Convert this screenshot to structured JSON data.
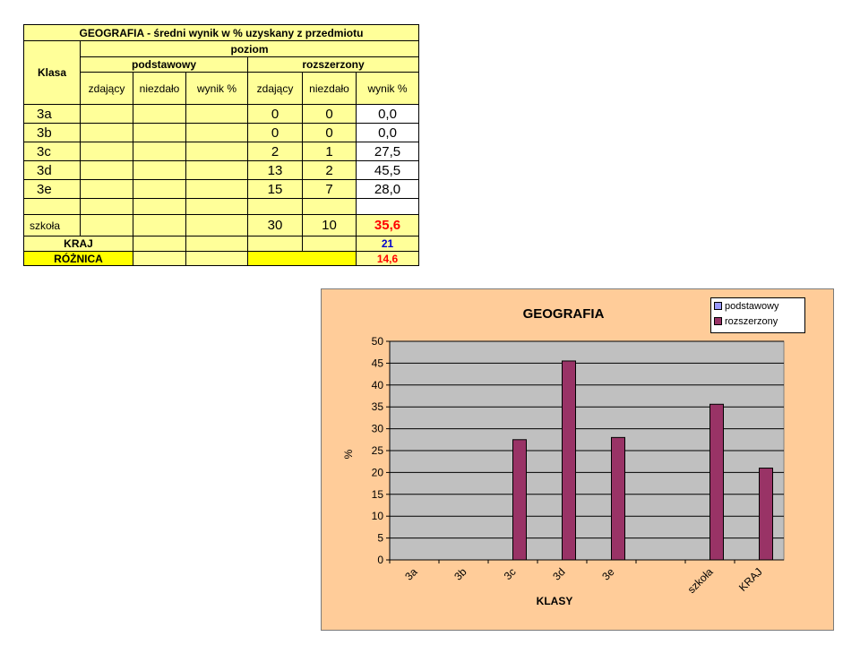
{
  "table": {
    "title": "GEOGRAFIA - średni wynik w % uzyskany z przedmiotu",
    "col_klasa": "Klasa",
    "col_poziom": "poziom",
    "col_podstawowy": "podstawowy",
    "col_rozszerzony": "rozszerzony",
    "sub_headers": [
      "zdający",
      "niezdało",
      "wynik %",
      "zdający",
      "niezdało",
      "wynik %"
    ],
    "rows": [
      {
        "klasa": "3a",
        "zdajacy": "0",
        "niezdalo": "0",
        "wynik": "0,0"
      },
      {
        "klasa": "3b",
        "zdajacy": "0",
        "niezdalo": "0",
        "wynik": "0,0"
      },
      {
        "klasa": "3c",
        "zdajacy": "2",
        "niezdalo": "1",
        "wynik": "27,5"
      },
      {
        "klasa": "3d",
        "zdajacy": "13",
        "niezdalo": "2",
        "wynik": "45,5"
      },
      {
        "klasa": "3e",
        "zdajacy": "15",
        "niezdalo": "7",
        "wynik": "28,0"
      }
    ],
    "szkola": {
      "label": "szkoła",
      "zdajacy": "30",
      "niezdalo": "10",
      "wynik": "35,6"
    },
    "kraj": {
      "label": "KRAJ",
      "wynik": "21"
    },
    "roznica": {
      "label": "RÓŻNICA",
      "wynik": "14,6"
    }
  },
  "chart_data": {
    "type": "bar",
    "title": "GEOGRAFIA",
    "xlabel": "KLASY",
    "ylabel": "%",
    "ylim": [
      0,
      50
    ],
    "yticks": [
      0,
      5,
      10,
      15,
      20,
      25,
      30,
      35,
      40,
      45,
      50
    ],
    "categories": [
      "3a",
      "3b",
      "3c",
      "3d",
      "3e",
      "",
      "szkoła",
      "KRAJ"
    ],
    "series": [
      {
        "name": "podstawowy",
        "color": "#9999ff",
        "values": [
          null,
          null,
          null,
          null,
          null,
          null,
          null,
          null
        ]
      },
      {
        "name": "rozszerzony",
        "color": "#993366",
        "values": [
          0,
          0,
          27.5,
          45.5,
          28,
          null,
          35.6,
          21
        ]
      }
    ],
    "grid": true,
    "legend_position": "top-right",
    "plot_bg": "#c0c0c0",
    "chart_bg": "#ffcc99"
  }
}
